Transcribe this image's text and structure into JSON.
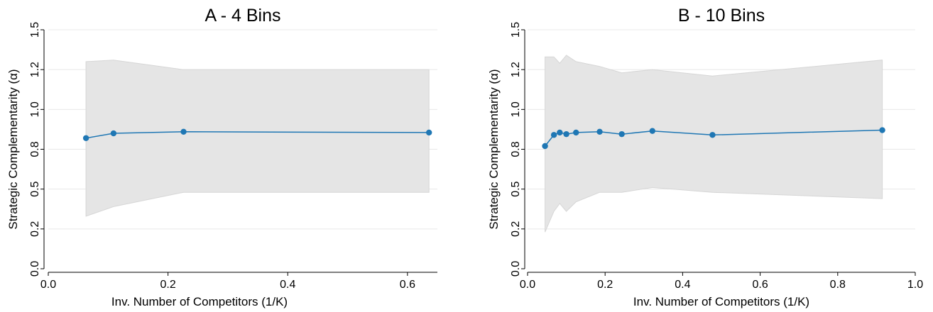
{
  "chart_data": [
    {
      "type": "line",
      "title": "A - 4 Bins",
      "xlabel": "Inv. Number of Competitors (1/K)",
      "ylabel": "Strategic Complementarity (α)",
      "xlim": [
        0,
        0.65
      ],
      "ylim": [
        0,
        1.5
      ],
      "xticks": [
        0.0,
        0.2,
        0.4,
        0.6
      ],
      "xtick_labels": [
        "0.0",
        "0.2",
        "0.4",
        "0.6"
      ],
      "yticks": [
        0.0,
        0.25,
        0.5,
        0.75,
        1.0,
        1.25,
        1.5
      ],
      "ytick_labels": [
        "0.0",
        "0.2",
        "0.5",
        "0.8",
        "1.0",
        "1.2",
        "1.5"
      ],
      "grid": true,
      "series": [
        {
          "x": [
            0.063,
            0.109,
            0.226,
            0.636
          ],
          "y": [
            0.82,
            0.85,
            0.86,
            0.855
          ],
          "ci_lower": [
            0.33,
            0.39,
            0.48,
            0.48
          ],
          "ci_upper": [
            1.3,
            1.31,
            1.25,
            1.25
          ],
          "color": "#1f77b4",
          "band_color": "#e5e5e5"
        }
      ]
    },
    {
      "type": "line",
      "title": "B - 10 Bins",
      "xlabel": "Inv. Number of Competitors (1/K)",
      "ylabel": "Strategic Complementarity (α)",
      "xlim": [
        0,
        1.0
      ],
      "ylim": [
        0,
        1.5
      ],
      "xticks": [
        0.0,
        0.2,
        0.4,
        0.6,
        0.8,
        1.0
      ],
      "xtick_labels": [
        "0.0",
        "0.2",
        "0.4",
        "0.6",
        "0.8",
        "1.0"
      ],
      "yticks": [
        0.0,
        0.25,
        0.5,
        0.75,
        1.0,
        1.25,
        1.5
      ],
      "ytick_labels": [
        "0.0",
        "0.2",
        "0.5",
        "0.8",
        "1.0",
        "1.2",
        "1.5"
      ],
      "grid": true,
      "series": [
        {
          "x": [
            0.045,
            0.068,
            0.083,
            0.1,
            0.125,
            0.186,
            0.243,
            0.322,
            0.477,
            0.915
          ],
          "y": [
            0.77,
            0.84,
            0.855,
            0.845,
            0.855,
            0.86,
            0.845,
            0.865,
            0.84,
            0.87
          ],
          "ci_lower": [
            0.23,
            0.36,
            0.41,
            0.36,
            0.42,
            0.48,
            0.48,
            0.51,
            0.48,
            0.44
          ],
          "ci_upper": [
            1.33,
            1.33,
            1.29,
            1.34,
            1.3,
            1.27,
            1.23,
            1.25,
            1.21,
            1.31
          ],
          "color": "#1f77b4",
          "band_color": "#e5e5e5"
        }
      ]
    }
  ]
}
